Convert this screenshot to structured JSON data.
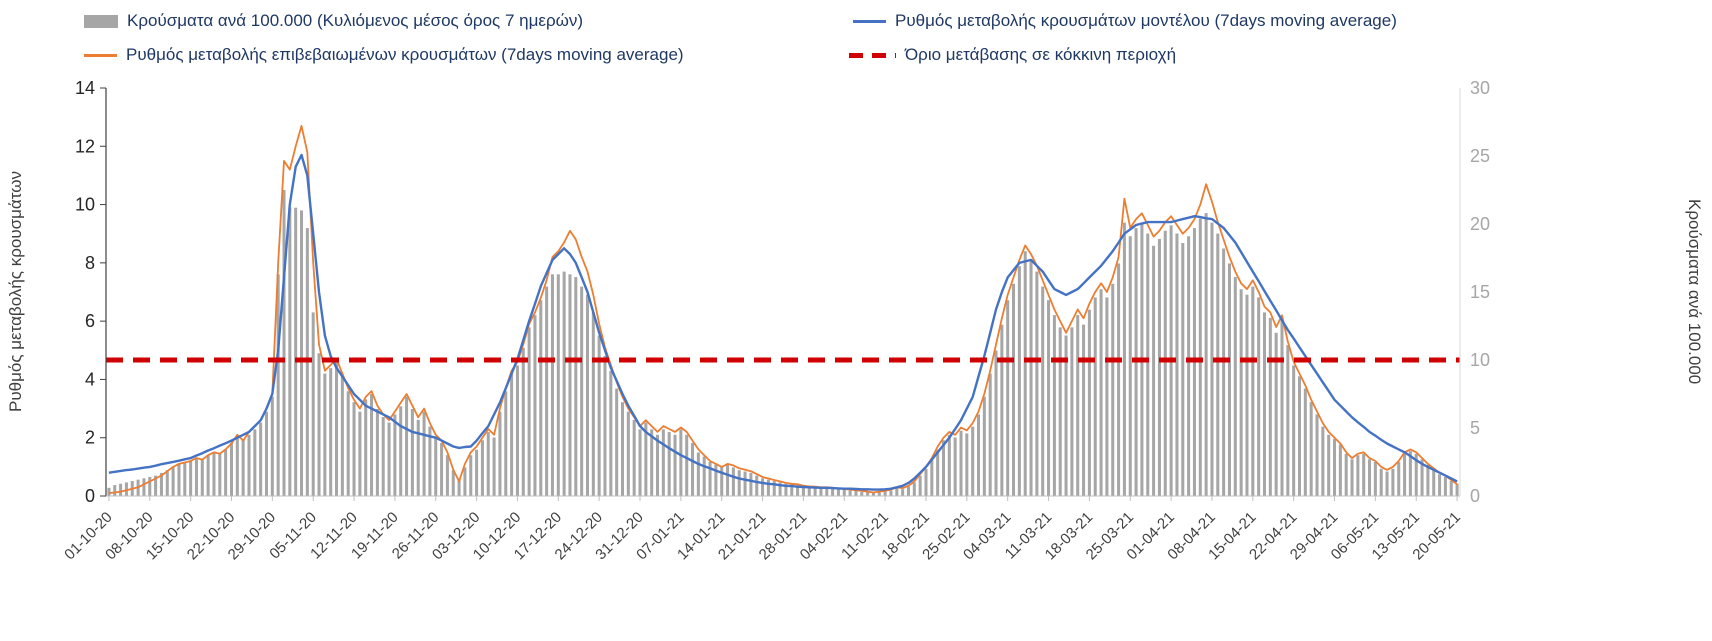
{
  "chart_data": {
    "type": "combo",
    "title": "",
    "days_per_tick": 7,
    "x_tick_labels": [
      "01-10-20",
      "08-10-20",
      "15-10-20",
      "22-10-20",
      "29-10-20",
      "05-11-20",
      "12-11-20",
      "19-11-20",
      "26-11-20",
      "03-12-20",
      "10-12-20",
      "17-12-20",
      "24-12-20",
      "31-12-20",
      "07-01-21",
      "14-01-21",
      "21-01-21",
      "28-01-21",
      "04-02-21",
      "11-02-21",
      "18-02-21",
      "25-02-21",
      "04-03-21",
      "11-03-21",
      "18-03-21",
      "25-03-21",
      "01-04-21",
      "08-04-21",
      "15-04-21",
      "22-04-21",
      "29-04-21",
      "06-05-21",
      "13-05-21",
      "20-05-21"
    ],
    "left_axis": {
      "title": "Ρυθμός μεταβολής κρουσμάτων",
      "min": 0,
      "max": 14,
      "ticks": [
        0,
        2,
        4,
        6,
        8,
        10,
        12,
        14
      ]
    },
    "right_axis": {
      "title": "Κρούσματα ανά 100.000",
      "min": 0,
      "max": 30,
      "ticks": [
        0,
        5,
        10,
        15,
        20,
        25,
        30
      ]
    },
    "series": [
      {
        "name": "Κρούσματα ανά 100.000 (Κυλιόμενος μέσος όρος 7 ημερών)",
        "type": "bar",
        "axis": "right",
        "color": "#a6a6a6",
        "values": [
          0.6,
          0.8,
          0.9,
          1.0,
          1.1,
          1.2,
          1.3,
          1.4,
          1.5,
          1.7,
          1.9,
          2.1,
          2.4,
          2.5,
          2.6,
          2.8,
          2.7,
          3.0,
          3.2,
          3.1,
          3.4,
          3.9,
          4.3,
          4.1,
          4.5,
          4.9,
          5.4,
          6.2,
          7.3,
          16.3,
          22.5,
          21.2,
          21.2,
          21.0,
          19.7,
          13.5,
          10.5,
          9.0,
          9.4,
          9.9,
          8.8,
          7.7,
          6.9,
          6.2,
          7.1,
          7.5,
          6.4,
          5.8,
          5.4,
          6.0,
          6.6,
          7.3,
          6.4,
          5.6,
          6.2,
          5.1,
          4.3,
          3.9,
          3.0,
          1.9,
          1.3,
          2.1,
          3.0,
          3.4,
          4.1,
          4.7,
          4.3,
          6.2,
          7.7,
          9.0,
          9.6,
          10.9,
          12.4,
          13.3,
          14.4,
          15.4,
          16.3,
          16.3,
          16.5,
          16.3,
          16.1,
          15.4,
          14.8,
          13.5,
          11.8,
          10.3,
          9.2,
          7.9,
          6.9,
          6.2,
          5.6,
          4.9,
          5.4,
          4.9,
          4.5,
          4.9,
          4.7,
          4.5,
          4.9,
          4.5,
          3.9,
          3.2,
          2.9,
          2.5,
          2.3,
          2.1,
          2.3,
          2.1,
          1.9,
          1.8,
          1.7,
          1.5,
          1.3,
          1.2,
          1.1,
          1.0,
          0.9,
          0.9,
          0.8,
          0.7,
          0.6,
          0.6,
          0.6,
          0.6,
          0.6,
          0.5,
          0.5,
          0.4,
          0.4,
          0.3,
          0.3,
          0.3,
          0.3,
          0.4,
          0.4,
          0.6,
          0.5,
          0.7,
          1.0,
          1.5,
          2.0,
          2.7,
          3.4,
          4.1,
          4.5,
          4.3,
          4.8,
          4.6,
          5.1,
          6.0,
          7.3,
          9.0,
          10.7,
          12.6,
          14.4,
          15.6,
          16.9,
          18.0,
          17.4,
          16.5,
          15.4,
          14.4,
          13.3,
          12.4,
          11.8,
          12.4,
          13.3,
          12.6,
          13.7,
          14.6,
          15.2,
          14.6,
          15.6,
          17.1,
          20.1,
          19.1,
          19.7,
          20.1,
          19.3,
          18.4,
          18.9,
          19.5,
          19.9,
          19.3,
          18.6,
          19.1,
          19.7,
          20.4,
          20.8,
          20.1,
          19.3,
          18.2,
          17.1,
          16.1,
          15.2,
          14.8,
          15.4,
          14.6,
          13.5,
          13.1,
          12.0,
          12.9,
          11.1,
          9.6,
          8.8,
          7.9,
          6.9,
          6.0,
          5.1,
          4.5,
          4.2,
          3.8,
          3.1,
          2.7,
          3.0,
          3.1,
          2.7,
          2.5,
          2.0,
          1.8,
          2.0,
          2.5,
          3.1,
          3.3,
          3.1,
          2.7,
          2.3,
          1.9,
          1.6,
          1.4,
          1.1,
          0.9
        ]
      },
      {
        "name": "Ρυθμός μεταβολής κρουσμάτων μοντέλου (7days moving average)",
        "type": "line",
        "axis": "left",
        "color": "#4472c4",
        "values": [
          0.8,
          0.83,
          0.86,
          0.89,
          0.91,
          0.94,
          0.97,
          1.0,
          1.04,
          1.09,
          1.13,
          1.17,
          1.21,
          1.26,
          1.3,
          1.39,
          1.47,
          1.56,
          1.64,
          1.73,
          1.81,
          1.9,
          2.0,
          2.1,
          2.2,
          2.4,
          2.6,
          3.0,
          3.5,
          5.0,
          7.5,
          10.0,
          11.3,
          11.7,
          11.0,
          9.0,
          7.0,
          5.5,
          4.8,
          4.4,
          4.1,
          3.8,
          3.5,
          3.3,
          3.1,
          3.0,
          2.9,
          2.8,
          2.7,
          2.55,
          2.4,
          2.3,
          2.2,
          2.15,
          2.1,
          2.05,
          2.0,
          1.9,
          1.8,
          1.7,
          1.65,
          1.68,
          1.7,
          1.9,
          2.15,
          2.4,
          2.8,
          3.2,
          3.7,
          4.2,
          4.7,
          5.35,
          6.0,
          6.6,
          7.2,
          7.65,
          8.1,
          8.3,
          8.5,
          8.3,
          8.0,
          7.5,
          7.0,
          6.3,
          5.6,
          5.0,
          4.4,
          3.95,
          3.5,
          3.1,
          2.75,
          2.4,
          2.2,
          2.05,
          1.9,
          1.77,
          1.64,
          1.52,
          1.4,
          1.3,
          1.2,
          1.1,
          1.02,
          0.95,
          0.87,
          0.8,
          0.73,
          0.66,
          0.6,
          0.56,
          0.52,
          0.48,
          0.45,
          0.42,
          0.4,
          0.37,
          0.35,
          0.34,
          0.32,
          0.31,
          0.3,
          0.29,
          0.28,
          0.28,
          0.27,
          0.26,
          0.25,
          0.25,
          0.24,
          0.23,
          0.23,
          0.22,
          0.22,
          0.23,
          0.25,
          0.3,
          0.35,
          0.45,
          0.6,
          0.8,
          1.0,
          1.25,
          1.5,
          1.75,
          2.0,
          2.3,
          2.6,
          3.0,
          3.4,
          4.1,
          4.8,
          5.6,
          6.4,
          7.0,
          7.5,
          7.75,
          8.0,
          8.05,
          8.1,
          7.9,
          7.7,
          7.4,
          7.1,
          7.0,
          6.9,
          7.0,
          7.1,
          7.3,
          7.5,
          7.7,
          7.9,
          8.15,
          8.4,
          8.7,
          9.0,
          9.15,
          9.3,
          9.35,
          9.4,
          9.4,
          9.4,
          9.4,
          9.4,
          9.45,
          9.5,
          9.55,
          9.6,
          9.57,
          9.53,
          9.5,
          9.35,
          9.2,
          8.95,
          8.7,
          8.37,
          8.03,
          7.7,
          7.37,
          7.03,
          6.7,
          6.37,
          6.03,
          5.7,
          5.4,
          5.1,
          4.8,
          4.5,
          4.2,
          3.9,
          3.6,
          3.3,
          3.1,
          2.9,
          2.7,
          2.53,
          2.37,
          2.2,
          2.07,
          1.93,
          1.8,
          1.7,
          1.6,
          1.5,
          1.37,
          1.23,
          1.1,
          1.0,
          0.9,
          0.8,
          0.7,
          0.6,
          0.5
        ]
      },
      {
        "name": "Ρυθμός μεταβολής επιβεβαιωμένων κρουσμάτων (7days moving average)",
        "type": "line",
        "axis": "left",
        "color": "#ed7d31",
        "values": [
          0.1,
          0.12,
          0.15,
          0.2,
          0.25,
          0.3,
          0.4,
          0.5,
          0.6,
          0.7,
          0.85,
          1.0,
          1.1,
          1.15,
          1.2,
          1.3,
          1.25,
          1.4,
          1.5,
          1.45,
          1.6,
          1.8,
          2.1,
          1.9,
          2.2,
          2.4,
          2.6,
          3.0,
          3.5,
          8.0,
          11.5,
          11.2,
          12.0,
          12.7,
          11.8,
          8.0,
          5.2,
          4.3,
          4.5,
          4.7,
          4.2,
          3.7,
          3.3,
          3.0,
          3.4,
          3.6,
          3.1,
          2.8,
          2.6,
          2.9,
          3.2,
          3.5,
          3.1,
          2.7,
          3.0,
          2.5,
          2.1,
          1.9,
          1.5,
          0.9,
          0.5,
          1.1,
          1.5,
          1.7,
          2.0,
          2.3,
          2.1,
          3.0,
          3.7,
          4.3,
          4.6,
          5.2,
          5.9,
          6.3,
          6.8,
          7.4,
          8.2,
          8.4,
          8.7,
          9.1,
          8.8,
          8.2,
          7.7,
          6.9,
          5.9,
          5.1,
          4.5,
          3.9,
          3.4,
          3.0,
          2.7,
          2.4,
          2.6,
          2.4,
          2.2,
          2.4,
          2.3,
          2.2,
          2.35,
          2.2,
          1.9,
          1.6,
          1.4,
          1.2,
          1.1,
          1.0,
          1.1,
          1.05,
          0.95,
          0.9,
          0.85,
          0.75,
          0.65,
          0.6,
          0.55,
          0.5,
          0.45,
          0.42,
          0.4,
          0.35,
          0.33,
          0.32,
          0.3,
          0.3,
          0.28,
          0.26,
          0.24,
          0.22,
          0.2,
          0.18,
          0.15,
          0.12,
          0.15,
          0.18,
          0.22,
          0.3,
          0.27,
          0.35,
          0.5,
          0.75,
          1.0,
          1.3,
          1.7,
          2.0,
          2.2,
          2.1,
          2.35,
          2.25,
          2.5,
          2.9,
          3.5,
          4.3,
          5.2,
          6.1,
          6.9,
          7.5,
          8.1,
          8.6,
          8.3,
          7.9,
          7.4,
          6.9,
          6.4,
          6.0,
          5.6,
          6.0,
          6.4,
          6.1,
          6.6,
          7.0,
          7.3,
          7.0,
          7.5,
          8.2,
          10.2,
          9.2,
          9.5,
          9.7,
          9.3,
          8.9,
          9.1,
          9.4,
          9.6,
          9.3,
          9.0,
          9.2,
          9.5,
          10.0,
          10.7,
          10.1,
          9.4,
          8.8,
          8.2,
          7.7,
          7.3,
          7.1,
          7.4,
          7.0,
          6.5,
          6.3,
          5.8,
          6.2,
          5.3,
          4.6,
          4.2,
          3.8,
          3.3,
          2.9,
          2.5,
          2.2,
          2.0,
          1.8,
          1.5,
          1.3,
          1.45,
          1.5,
          1.3,
          1.2,
          1.0,
          0.9,
          1.0,
          1.2,
          1.5,
          1.6,
          1.5,
          1.3,
          1.1,
          0.95,
          0.8,
          0.7,
          0.55,
          0.4
        ]
      },
      {
        "name": "Όριο μετάβασης σε κόκκινη περιοχή",
        "type": "threshold",
        "axis": "right",
        "color": "#d00000",
        "value": 10
      }
    ]
  }
}
